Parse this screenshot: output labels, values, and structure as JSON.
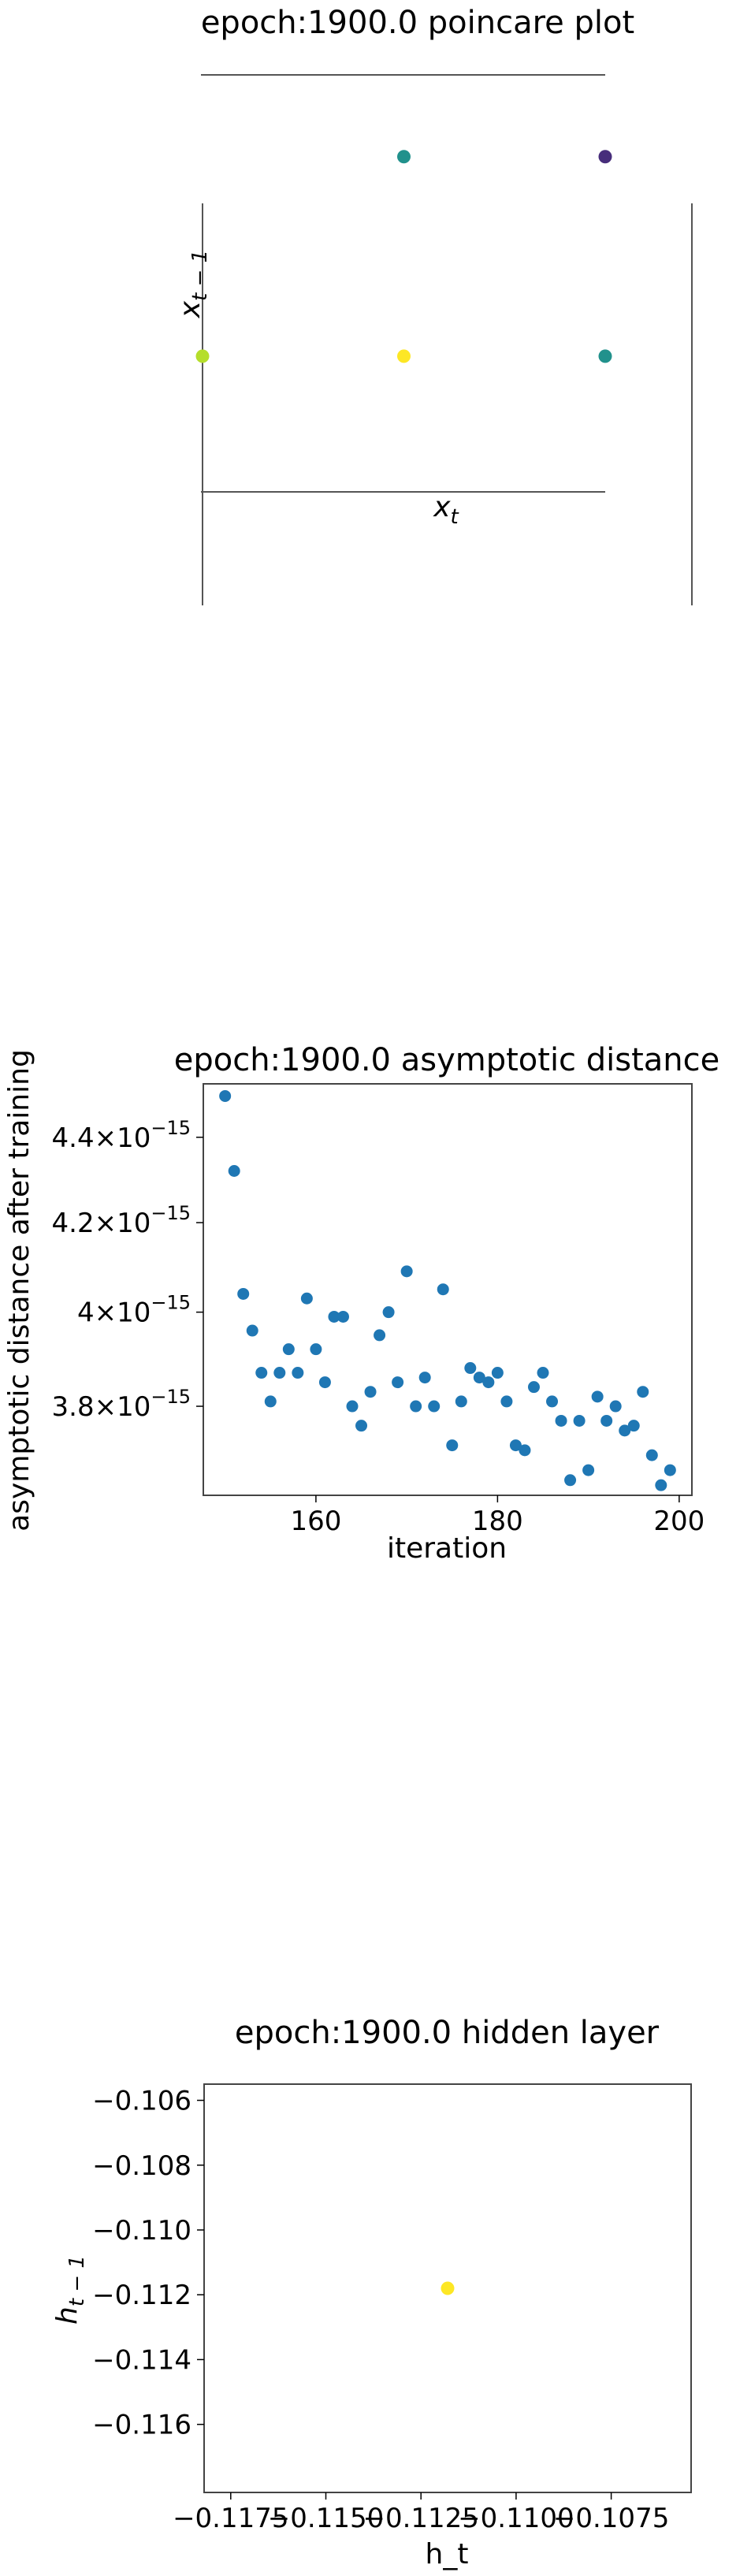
{
  "chart_data": [
    {
      "type": "scatter",
      "title": "epoch:1900.0 poincare plot",
      "xlabel": "x_t",
      "ylabel": "x_{t-1}",
      "grid": false,
      "x": [
        0,
        1,
        2,
        1,
        2
      ],
      "y": [
        0,
        0,
        0,
        1,
        1
      ],
      "point_colors": [
        "#b5de2b",
        "#fde725",
        "#21918c",
        "#21918c",
        "#472d7b"
      ],
      "xlim": [
        0,
        2
      ],
      "ylim": [
        -0.68,
        1.41
      ]
    },
    {
      "type": "scatter",
      "title": "epoch:1900.0 asymptotic distance",
      "xlabel": "iteration",
      "ylabel": "asymptotic distance after training",
      "y_scale": "log",
      "grid": false,
      "color": "#1f77b4",
      "xlim": [
        147.6,
        201.4
      ],
      "ylim": [
        3.62e-15,
        4.53e-15
      ],
      "x_ticks": [
        160,
        180,
        200
      ],
      "y_ticks": [
        {
          "value": 3.8e-15,
          "base": "3.8",
          "exp": "−15"
        },
        {
          "value": 4e-15,
          "base": "4",
          "exp": "−15"
        },
        {
          "value": 4.2e-15,
          "base": "4.2",
          "exp": "−15"
        },
        {
          "value": 4.4e-15,
          "base": "4.4",
          "exp": "−15"
        }
      ],
      "x": [
        150,
        151,
        152,
        153,
        154,
        155,
        156,
        157,
        158,
        159,
        160,
        161,
        162,
        163,
        164,
        165,
        166,
        167,
        168,
        169,
        170,
        171,
        172,
        173,
        174,
        175,
        176,
        177,
        178,
        179,
        180,
        181,
        182,
        183,
        184,
        185,
        186,
        187,
        188,
        189,
        190,
        191,
        192,
        193,
        194,
        195,
        196,
        197,
        198,
        199
      ],
      "y": [
        4.5e-15,
        4.32e-15,
        4.04e-15,
        3.96e-15,
        3.87e-15,
        3.81e-15,
        3.87e-15,
        3.92e-15,
        3.87e-15,
        4.03e-15,
        3.92e-15,
        3.85e-15,
        3.99e-15,
        3.99e-15,
        3.8e-15,
        3.76e-15,
        3.83e-15,
        3.95e-15,
        4e-15,
        3.85e-15,
        4.09e-15,
        3.8e-15,
        3.86e-15,
        3.8e-15,
        4.05e-15,
        3.72e-15,
        3.81e-15,
        3.88e-15,
        3.86e-15,
        3.85e-15,
        3.87e-15,
        3.81e-15,
        3.72e-15,
        3.71e-15,
        3.84e-15,
        3.87e-15,
        3.81e-15,
        3.77e-15,
        3.65e-15,
        3.77e-15,
        3.67e-15,
        3.82e-15,
        3.77e-15,
        3.8e-15,
        3.75e-15,
        3.76e-15,
        3.83e-15,
        3.7e-15,
        3.64e-15,
        3.67e-15
      ]
    },
    {
      "type": "scatter",
      "title": "epoch:1900.0 hidden layer",
      "xlabel": "h_t",
      "ylabel": "h_{t-1}",
      "grid": false,
      "x": [
        -0.1118
      ],
      "y": [
        -0.1118
      ],
      "point_colors": [
        "#fde725"
      ],
      "xlim": [
        -0.1182,
        -0.1054
      ],
      "ylim": [
        -0.1181,
        -0.1055
      ],
      "x_ticks": [
        -0.1175,
        -0.115,
        -0.1125,
        -0.11,
        -0.1075
      ],
      "x_tick_labels": [
        "−0.1175",
        "−0.1150",
        "−0.1125",
        "−0.1100",
        "−0.1075"
      ],
      "y_ticks": [
        -0.106,
        -0.108,
        -0.11,
        -0.112,
        -0.114,
        -0.116
      ],
      "y_tick_labels": [
        "−0.106",
        "−0.108",
        "−0.110",
        "−0.112",
        "−0.114",
        "−0.116"
      ]
    }
  ]
}
